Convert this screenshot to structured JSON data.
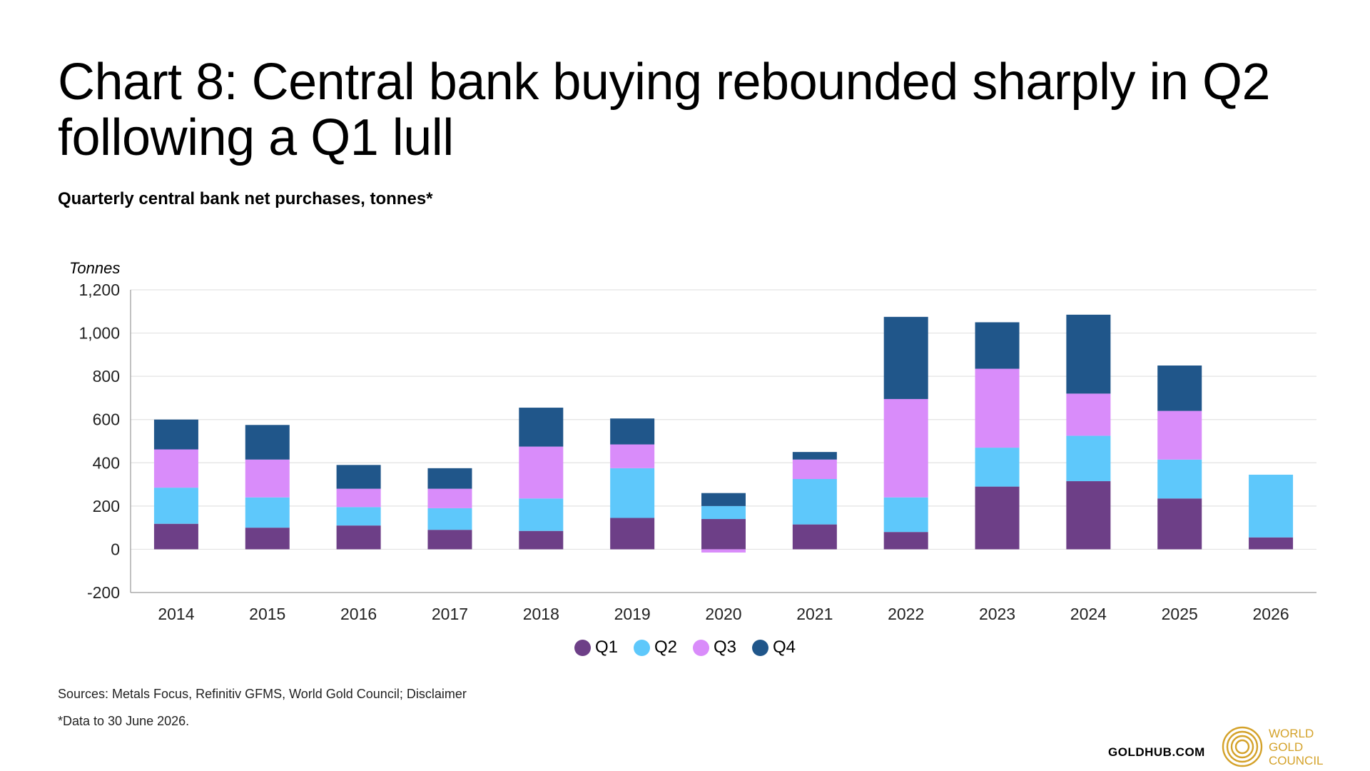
{
  "header": {
    "title_line1": "Chart 8: Central bank buying rebounded sharply in Q2",
    "title_line2": "following a Q1 lull",
    "subtitle": "Quarterly central bank net purchases, tonnes*"
  },
  "chart_data": {
    "type": "bar",
    "stacked": true,
    "ylabel": "Tonnes",
    "ylim": [
      -200,
      1200
    ],
    "yticks": [
      -200,
      0,
      200,
      400,
      600,
      800,
      1000,
      1200
    ],
    "ytick_labels": [
      "-200",
      "0",
      "200",
      "400",
      "600",
      "800",
      "1,000",
      "1,200"
    ],
    "grid": true,
    "legend_position": "bottom",
    "categories": [
      "2014",
      "2015",
      "2016",
      "2017",
      "2018",
      "2019",
      "2020",
      "2021",
      "2022",
      "2023",
      "2024",
      "2025",
      "2026"
    ],
    "series": [
      {
        "name": "Q1",
        "color": "#6d3f87",
        "values": [
          118,
          100,
          110,
          90,
          85,
          145,
          140,
          115,
          80,
          290,
          315,
          235,
          55
        ]
      },
      {
        "name": "Q2",
        "color": "#5ec8fb",
        "values": [
          167,
          140,
          85,
          100,
          150,
          230,
          60,
          210,
          160,
          180,
          210,
          180,
          290
        ]
      },
      {
        "name": "Q3",
        "color": "#d98cfa",
        "values": [
          177,
          175,
          85,
          90,
          240,
          110,
          -15,
          90,
          455,
          365,
          195,
          225,
          0
        ]
      },
      {
        "name": "Q4",
        "color": "#20568a",
        "values": [
          138,
          160,
          110,
          95,
          180,
          120,
          60,
          35,
          380,
          215,
          365,
          210,
          0
        ]
      }
    ]
  },
  "footnotes": {
    "sources": "Sources: Metals Focus, Refinitiv GFMS, World Gold Council; Disclaimer",
    "note": "*Data to 30 June 2026."
  },
  "branding": {
    "site": "GOLDHUB.COM",
    "logo_line1": "WORLD",
    "logo_line2": "GOLD",
    "logo_line3": "COUNCIL",
    "logo_color": "#d4a22a"
  }
}
